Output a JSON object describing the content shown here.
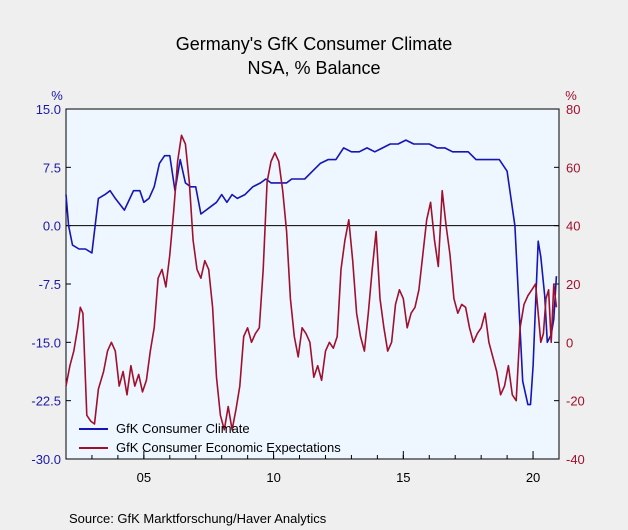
{
  "chart_data": {
    "type": "line",
    "title": "Germany's GfK Consumer Climate",
    "subtitle": "NSA, % Balance",
    "source": "Source:  GfK Marktforschung/Haver Analytics",
    "left_axis": {
      "unit": "%",
      "ylim": [
        -30,
        15
      ],
      "ticks": [
        15.0,
        7.5,
        0.0,
        -7.5,
        -15.0,
        -22.5,
        -30.0
      ],
      "tick_labels": [
        "15.0",
        "7.5",
        "0.0",
        "-7.5",
        "-15.0",
        "-22.5",
        "-30.0"
      ]
    },
    "right_axis": {
      "unit": "%",
      "ylim": [
        -40,
        80
      ],
      "ticks": [
        80,
        60,
        40,
        20,
        0,
        -20,
        -40
      ],
      "tick_labels": [
        "80",
        "60",
        "40",
        "20",
        "0",
        "-20",
        "-40"
      ]
    },
    "x_axis": {
      "xlim": [
        2002.0,
        2021.0
      ],
      "ticks": [
        2005,
        2010,
        2015,
        2020
      ],
      "tick_labels": [
        "05",
        "10",
        "15",
        "20"
      ]
    },
    "zero_line": 0,
    "grid": false,
    "legend_position": "bottom-left",
    "colors": {
      "climate": "#1515b4",
      "expectations": "#a0102c",
      "plot_bg": "#eef6ff",
      "page_bg": "#efefef"
    },
    "series": [
      {
        "name": "GfK Consumer Climate",
        "axis": "left",
        "x": [
          2002.0,
          2002.1,
          2002.25,
          2002.5,
          2002.75,
          2003.0,
          2003.25,
          2003.5,
          2003.7,
          2003.9,
          2004.25,
          2004.6,
          2004.85,
          2005.0,
          2005.2,
          2005.4,
          2005.6,
          2005.8,
          2006.0,
          2006.2,
          2006.4,
          2006.6,
          2006.8,
          2007.0,
          2007.2,
          2007.4,
          2007.6,
          2007.8,
          2008.0,
          2008.2,
          2008.4,
          2008.6,
          2008.9,
          2009.2,
          2009.5,
          2009.7,
          2009.9,
          2010.1,
          2010.3,
          2010.5,
          2010.7,
          2010.9,
          2011.2,
          2011.5,
          2011.8,
          2012.1,
          2012.4,
          2012.7,
          2013.0,
          2013.3,
          2013.6,
          2013.9,
          2014.2,
          2014.5,
          2014.8,
          2015.1,
          2015.4,
          2015.7,
          2016.0,
          2016.3,
          2016.6,
          2016.9,
          2017.2,
          2017.5,
          2017.8,
          2018.1,
          2018.4,
          2018.7,
          2019.0,
          2019.3,
          2019.6,
          2019.8,
          2019.9,
          2020.0,
          2020.1,
          2020.2,
          2020.3,
          2020.45,
          2020.55,
          2020.7,
          2020.8,
          2020.9
        ],
        "y": [
          4.0,
          0.0,
          -2.5,
          -3.0,
          -3.0,
          -3.5,
          3.5,
          4.0,
          4.5,
          3.5,
          2.0,
          4.5,
          4.5,
          3.0,
          3.5,
          5.0,
          8.0,
          9.0,
          9.0,
          4.5,
          8.5,
          5.5,
          5.0,
          5.0,
          1.5,
          2.0,
          2.5,
          3.0,
          4.0,
          3.0,
          4.0,
          3.5,
          4.0,
          5.0,
          5.5,
          6.0,
          5.5,
          5.5,
          5.5,
          5.5,
          6.0,
          6.0,
          6.0,
          7.0,
          8.0,
          8.5,
          8.5,
          10.0,
          9.5,
          9.5,
          10.0,
          9.5,
          10.0,
          10.5,
          10.5,
          11.0,
          10.5,
          10.5,
          10.5,
          10.0,
          10.0,
          9.5,
          9.5,
          9.5,
          8.5,
          8.5,
          8.5,
          8.5,
          7.0,
          0.0,
          -20.0,
          -23.0,
          -23.0,
          -18.0,
          -10.0,
          -2.0,
          -4.0,
          -9.0,
          -15.0,
          -14.0,
          -12.0,
          -6.5
        ]
      },
      {
        "name": "GfK Consumer Economic Expectations",
        "axis": "right",
        "x": [
          2002.0,
          2002.15,
          2002.3,
          2002.45,
          2002.55,
          2002.65,
          2002.8,
          2002.95,
          2003.1,
          2003.25,
          2003.45,
          2003.6,
          2003.75,
          2003.9,
          2004.05,
          2004.2,
          2004.35,
          2004.5,
          2004.65,
          2004.8,
          2004.95,
          2005.1,
          2005.25,
          2005.4,
          2005.55,
          2005.7,
          2005.85,
          2006.0,
          2006.15,
          2006.3,
          2006.45,
          2006.6,
          2006.75,
          2006.9,
          2007.05,
          2007.2,
          2007.35,
          2007.5,
          2007.65,
          2007.8,
          2007.95,
          2008.1,
          2008.25,
          2008.4,
          2008.55,
          2008.7,
          2008.85,
          2009.0,
          2009.15,
          2009.3,
          2009.45,
          2009.6,
          2009.75,
          2009.9,
          2010.05,
          2010.2,
          2010.35,
          2010.5,
          2010.65,
          2010.8,
          2010.95,
          2011.1,
          2011.25,
          2011.4,
          2011.55,
          2011.7,
          2011.85,
          2012.0,
          2012.15,
          2012.3,
          2012.45,
          2012.6,
          2012.75,
          2012.9,
          2013.05,
          2013.2,
          2013.35,
          2013.5,
          2013.65,
          2013.8,
          2013.95,
          2014.1,
          2014.25,
          2014.4,
          2014.55,
          2014.7,
          2014.85,
          2015.0,
          2015.15,
          2015.3,
          2015.45,
          2015.6,
          2015.75,
          2015.9,
          2016.05,
          2016.2,
          2016.35,
          2016.5,
          2016.65,
          2016.8,
          2016.95,
          2017.1,
          2017.25,
          2017.4,
          2017.55,
          2017.7,
          2017.85,
          2018.0,
          2018.15,
          2018.3,
          2018.45,
          2018.6,
          2018.75,
          2018.9,
          2019.05,
          2019.2,
          2019.35,
          2019.5,
          2019.65,
          2019.8,
          2019.95,
          2020.1,
          2020.2,
          2020.3,
          2020.4,
          2020.5,
          2020.6,
          2020.7,
          2020.8,
          2020.9
        ],
        "y": [
          -15,
          -8,
          -3,
          5,
          12,
          10,
          -25,
          -27,
          -28,
          -16,
          -10,
          -3,
          0,
          -3,
          -15,
          -10,
          -18,
          -8,
          -15,
          -11,
          -17,
          -13,
          -3,
          5,
          22,
          25,
          19,
          30,
          45,
          62,
          71,
          68,
          55,
          35,
          25,
          22,
          28,
          25,
          12,
          -12,
          -25,
          -30,
          -22,
          -30,
          -23,
          -15,
          2,
          5,
          0,
          3,
          5,
          25,
          55,
          62,
          65,
          62,
          52,
          38,
          15,
          2,
          -5,
          5,
          3,
          0,
          -12,
          -8,
          -13,
          -3,
          0,
          -2,
          2,
          25,
          35,
          42,
          28,
          10,
          2,
          -3,
          10,
          25,
          38,
          15,
          5,
          -3,
          0,
          13,
          18,
          15,
          5,
          10,
          12,
          18,
          30,
          42,
          48,
          35,
          26,
          52,
          40,
          30,
          15,
          10,
          13,
          12,
          5,
          0,
          3,
          5,
          10,
          0,
          -5,
          -10,
          -18,
          -15,
          -8,
          -18,
          -20,
          5,
          13,
          16,
          18,
          20,
          10,
          0,
          3,
          15,
          18,
          0,
          20,
          12
        ]
      }
    ]
  }
}
